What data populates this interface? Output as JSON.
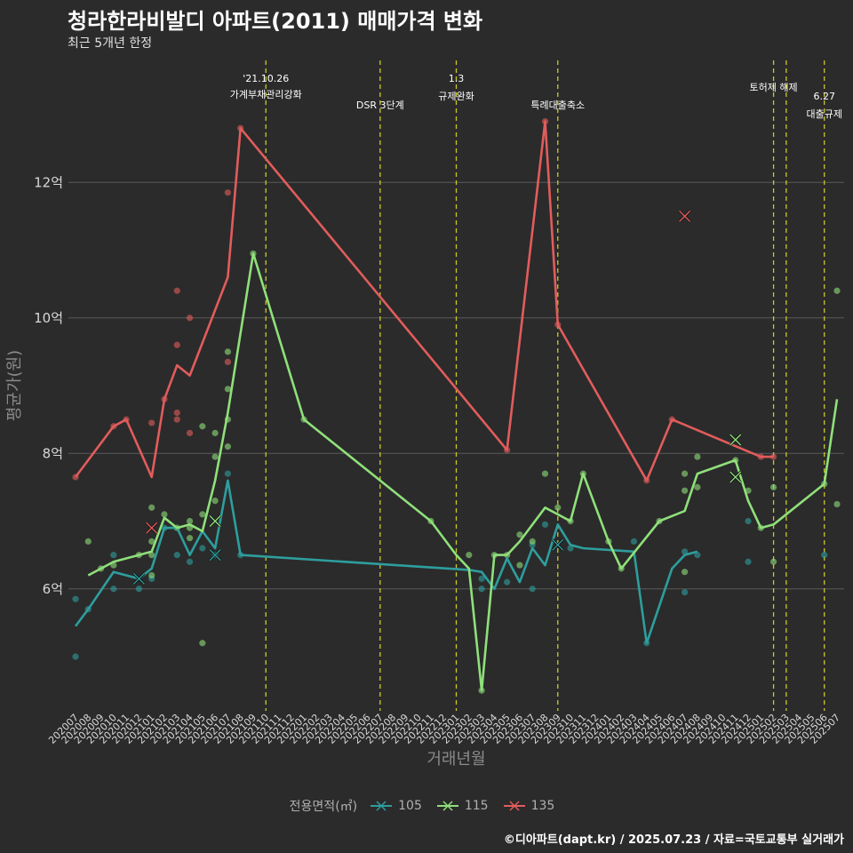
{
  "title": "청라한라비발디 아파트(2011) 매매가격 변화",
  "subtitle": "최근 5개년 한정",
  "caption": "©디아파트(dapt.kr) / 2025.07.23 / 자료=국토교통부 실거래가",
  "colors": {
    "s105": "#2e9e9e",
    "s115": "#8fe07a",
    "s135": "#e25c5c",
    "vline": "#c9c92a",
    "grid": "#5a5a5a"
  },
  "legend": {
    "title": "전용면적(㎡)",
    "items": [
      "105",
      "115",
      "135"
    ]
  },
  "chart_data": {
    "type": "line",
    "title": "청라한라비발디 아파트(2011) 매매가격 변화",
    "xlabel": "거래년월",
    "ylabel": "평균가(원)",
    "ylim": [
      4.2,
      13.8
    ],
    "yticks": [
      6,
      8,
      10,
      12
    ],
    "yticklabels": [
      "6억",
      "8억",
      "10억",
      "12억"
    ],
    "grid": true,
    "legend_position": "bottom",
    "categories": [
      "202007",
      "202008",
      "202009",
      "202010",
      "202011",
      "202012",
      "202101",
      "202102",
      "202103",
      "202104",
      "202105",
      "202106",
      "202107",
      "202108",
      "202109",
      "202110",
      "202111",
      "202112",
      "202201",
      "202202",
      "202203",
      "202204",
      "202205",
      "202206",
      "202207",
      "202208",
      "202209",
      "202210",
      "202211",
      "202212",
      "202301",
      "202302",
      "202303",
      "202304",
      "202305",
      "202306",
      "202307",
      "202308",
      "202309",
      "202310",
      "202311",
      "202312",
      "202401",
      "202402",
      "202403",
      "202404",
      "202405",
      "202406",
      "202407",
      "202408",
      "202409",
      "202410",
      "202411",
      "202412",
      "202501",
      "202502",
      "202503",
      "202504",
      "202505",
      "202506",
      "202507"
    ],
    "series": [
      {
        "name": "105",
        "color": "#2e9e9e",
        "line": [
          [
            "202007",
            5.45
          ],
          [
            "202008",
            5.7
          ],
          [
            "202010",
            6.25
          ],
          [
            "202011",
            6.2
          ],
          [
            "202012",
            6.15
          ],
          [
            "202101",
            6.3
          ],
          [
            "202102",
            6.9
          ],
          [
            "202103",
            6.9
          ],
          [
            "202104",
            6.5
          ],
          [
            "202105",
            6.85
          ],
          [
            "202106",
            6.6
          ],
          [
            "202107",
            7.6
          ],
          [
            "202108",
            6.5
          ],
          [
            "202302",
            6.28
          ],
          [
            "202303",
            6.25
          ],
          [
            "202304",
            6.0
          ],
          [
            "202305",
            6.45
          ],
          [
            "202306",
            6.1
          ],
          [
            "202307",
            6.6
          ],
          [
            "202308",
            6.35
          ],
          [
            "202309",
            6.95
          ],
          [
            "202310",
            6.65
          ],
          [
            "202311",
            6.6
          ],
          [
            "202403",
            6.55
          ],
          [
            "202404",
            5.2
          ],
          [
            "202406",
            6.3
          ],
          [
            "202407",
            6.5
          ],
          [
            "202408",
            6.55
          ]
        ],
        "points": [
          [
            "202007",
            5.0
          ],
          [
            "202007",
            5.85
          ],
          [
            "202008",
            5.7
          ],
          [
            "202010",
            6.5
          ],
          [
            "202010",
            6.0
          ],
          [
            "202012",
            6.0
          ],
          [
            "202101",
            6.15
          ],
          [
            "202102",
            6.9
          ],
          [
            "202103",
            6.5
          ],
          [
            "202104",
            6.4
          ],
          [
            "202105",
            6.6
          ],
          [
            "202106",
            6.5
          ],
          [
            "202107",
            7.7
          ],
          [
            "202108",
            6.5
          ],
          [
            "202303",
            6.0
          ],
          [
            "202303",
            6.15
          ],
          [
            "202305",
            6.1
          ],
          [
            "202307",
            6.65
          ],
          [
            "202307",
            6.0
          ],
          [
            "202308",
            6.95
          ],
          [
            "202310",
            6.6
          ],
          [
            "202403",
            6.7
          ],
          [
            "202404",
            5.2
          ],
          [
            "202407",
            6.55
          ],
          [
            "202407",
            5.95
          ],
          [
            "202408",
            6.5
          ],
          [
            "202412",
            6.4
          ],
          [
            "202412",
            7.0
          ],
          [
            "202506",
            6.5
          ]
        ],
        "crosses": [
          [
            "202012",
            6.15
          ],
          [
            "202106",
            6.5
          ],
          [
            "202309",
            6.65
          ]
        ]
      },
      {
        "name": "115",
        "color": "#8fe07a",
        "line": [
          [
            "202008",
            6.2
          ],
          [
            "202009",
            6.3
          ],
          [
            "202010",
            6.4
          ],
          [
            "202012",
            6.5
          ],
          [
            "202101",
            6.55
          ],
          [
            "202102",
            7.05
          ],
          [
            "202103",
            6.9
          ],
          [
            "202104",
            6.95
          ],
          [
            "202105",
            6.85
          ],
          [
            "202106",
            7.6
          ],
          [
            "202107",
            8.6
          ],
          [
            "202109",
            10.95
          ],
          [
            "202201",
            8.5
          ],
          [
            "202211",
            7.0
          ],
          [
            "202301",
            6.5
          ],
          [
            "202302",
            6.3
          ],
          [
            "202303",
            4.5
          ],
          [
            "202304",
            6.5
          ],
          [
            "202305",
            6.5
          ],
          [
            "202306",
            6.7
          ],
          [
            "202308",
            7.2
          ],
          [
            "202309",
            7.1
          ],
          [
            "202310",
            7.0
          ],
          [
            "202311",
            7.7
          ],
          [
            "202401",
            6.7
          ],
          [
            "202402",
            6.3
          ],
          [
            "202405",
            7.0
          ],
          [
            "202407",
            7.15
          ],
          [
            "202408",
            7.7
          ],
          [
            "202411",
            7.9
          ],
          [
            "202412",
            7.3
          ],
          [
            "202501",
            6.9
          ],
          [
            "202502",
            6.95
          ],
          [
            "202506",
            7.55
          ],
          [
            "202507",
            8.8
          ]
        ],
        "points": [
          [
            "202008",
            6.7
          ],
          [
            "202009",
            6.3
          ],
          [
            "202010",
            6.35
          ],
          [
            "202012",
            6.5
          ],
          [
            "202101",
            6.2
          ],
          [
            "202101",
            7.2
          ],
          [
            "202101",
            6.7
          ],
          [
            "202101",
            6.5
          ],
          [
            "202102",
            7.1
          ],
          [
            "202103",
            6.9
          ],
          [
            "202104",
            6.75
          ],
          [
            "202104",
            6.9
          ],
          [
            "202104",
            7.0
          ],
          [
            "202105",
            7.1
          ],
          [
            "202105",
            8.4
          ],
          [
            "202105",
            5.2
          ],
          [
            "202106",
            7.3
          ],
          [
            "202106",
            7.95
          ],
          [
            "202106",
            8.3
          ],
          [
            "202107",
            8.1
          ],
          [
            "202107",
            8.5
          ],
          [
            "202107",
            8.95
          ],
          [
            "202107",
            9.5
          ],
          [
            "202109",
            10.95
          ],
          [
            "202201",
            8.5
          ],
          [
            "202211",
            7.0
          ],
          [
            "202302",
            6.5
          ],
          [
            "202303",
            4.5
          ],
          [
            "202304",
            6.5
          ],
          [
            "202305",
            6.5
          ],
          [
            "202306",
            6.35
          ],
          [
            "202306",
            6.8
          ],
          [
            "202307",
            6.7
          ],
          [
            "202308",
            7.7
          ],
          [
            "202309",
            7.2
          ],
          [
            "202310",
            7.0
          ],
          [
            "202311",
            7.7
          ],
          [
            "202401",
            6.7
          ],
          [
            "202402",
            6.3
          ],
          [
            "202405",
            7.0
          ],
          [
            "202407",
            7.7
          ],
          [
            "202407",
            7.45
          ],
          [
            "202407",
            6.25
          ],
          [
            "202408",
            7.95
          ],
          [
            "202408",
            7.5
          ],
          [
            "202411",
            7.9
          ],
          [
            "202412",
            7.45
          ],
          [
            "202501",
            6.9
          ],
          [
            "202502",
            6.4
          ],
          [
            "202502",
            7.5
          ],
          [
            "202506",
            7.55
          ],
          [
            "202507",
            10.4
          ],
          [
            "202507",
            7.25
          ]
        ],
        "crosses": [
          [
            "202106",
            7.0
          ],
          [
            "202411",
            8.2
          ],
          [
            "202411",
            7.65
          ]
        ]
      },
      {
        "name": "135",
        "color": "#e25c5c",
        "line": [
          [
            "202007",
            7.65
          ],
          [
            "202010",
            8.4
          ],
          [
            "202011",
            8.5
          ],
          [
            "202101",
            7.65
          ],
          [
            "202102",
            8.8
          ],
          [
            "202103",
            9.3
          ],
          [
            "202104",
            9.15
          ],
          [
            "202107",
            10.6
          ],
          [
            "202108",
            12.8
          ],
          [
            "202305",
            8.05
          ],
          [
            "202308",
            12.9
          ],
          [
            "202309",
            9.9
          ],
          [
            "202404",
            7.6
          ],
          [
            "202406",
            8.5
          ],
          [
            "202501",
            7.95
          ],
          [
            "202502",
            7.95
          ]
        ],
        "points": [
          [
            "202007",
            7.65
          ],
          [
            "202010",
            8.4
          ],
          [
            "202011",
            8.5
          ],
          [
            "202101",
            8.45
          ],
          [
            "202102",
            8.8
          ],
          [
            "202103",
            10.4
          ],
          [
            "202103",
            9.6
          ],
          [
            "202103",
            8.6
          ],
          [
            "202103",
            8.5
          ],
          [
            "202104",
            10.0
          ],
          [
            "202104",
            8.3
          ],
          [
            "202107",
            11.85
          ],
          [
            "202107",
            9.35
          ],
          [
            "202108",
            12.8
          ],
          [
            "202305",
            8.05
          ],
          [
            "202308",
            12.9
          ],
          [
            "202309",
            9.9
          ],
          [
            "202404",
            7.6
          ],
          [
            "202406",
            8.5
          ],
          [
            "202501",
            7.95
          ],
          [
            "202502",
            7.95
          ]
        ],
        "crosses": [
          [
            "202101",
            6.9
          ],
          [
            "202407",
            11.5
          ]
        ]
      }
    ],
    "annotations": [
      {
        "x": "202110",
        "label": "'21.10.26\n가계부채관리강화"
      },
      {
        "x": "202207",
        "label": "DSR 3단계"
      },
      {
        "x": "202301",
        "label": "1.3\n규제완화"
      },
      {
        "x": "202309",
        "label": "특례대출축소"
      },
      {
        "x": "202502",
        "label": "토허제 해제"
      },
      {
        "x": "202503",
        "label": ""
      },
      {
        "x": "202506",
        "label": "6.27\n대출규제"
      }
    ]
  }
}
